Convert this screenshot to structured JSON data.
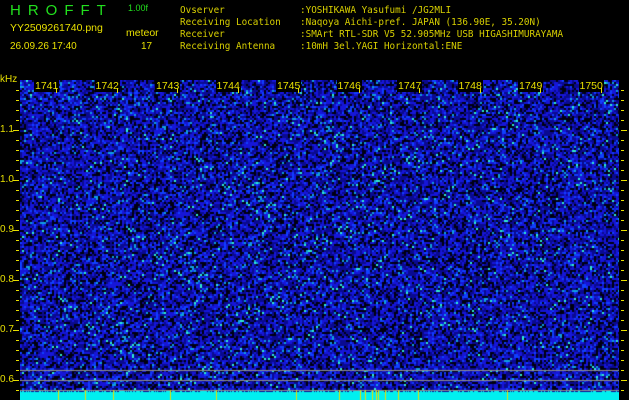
{
  "header": {
    "title": "HROFFT",
    "version": "1.00f",
    "filename": "YY2509261740.png",
    "datetime": "26.09.26 17:40",
    "meteor_label": "meteor",
    "meteor_count": "17"
  },
  "info": [
    {
      "label": "Ovserver",
      "value": ":YOSHIKAWA Yasufumi /JG2MLI"
    },
    {
      "label": "Receiving Location",
      "value": ":Naqoya Aichi-pref. JAPAN (136.90E, 35.20N)"
    },
    {
      "label": "Receiver",
      "value": ":SMArt RTL-SDR V5 52.905MHz USB HIGASHIMURAYAMA"
    },
    {
      "label": "Receiving Antenna",
      "value": ":10mH 3el.YAGI Horizontal:ENE"
    }
  ],
  "axis": {
    "y_unit": "kHz",
    "y_labels": [
      "1.1",
      "1.0",
      "0.9",
      "0.8",
      "0.7",
      "0.6"
    ],
    "x_labels": [
      "1741",
      "1742",
      "1743",
      "1744",
      "1745",
      "1746",
      "1747",
      "1748",
      "1749",
      "1750"
    ]
  },
  "colors": {
    "background": "#000000",
    "text": "#e8e000",
    "title": "#22e01e",
    "noise": "#1010c8",
    "band": "#00f0f0"
  }
}
